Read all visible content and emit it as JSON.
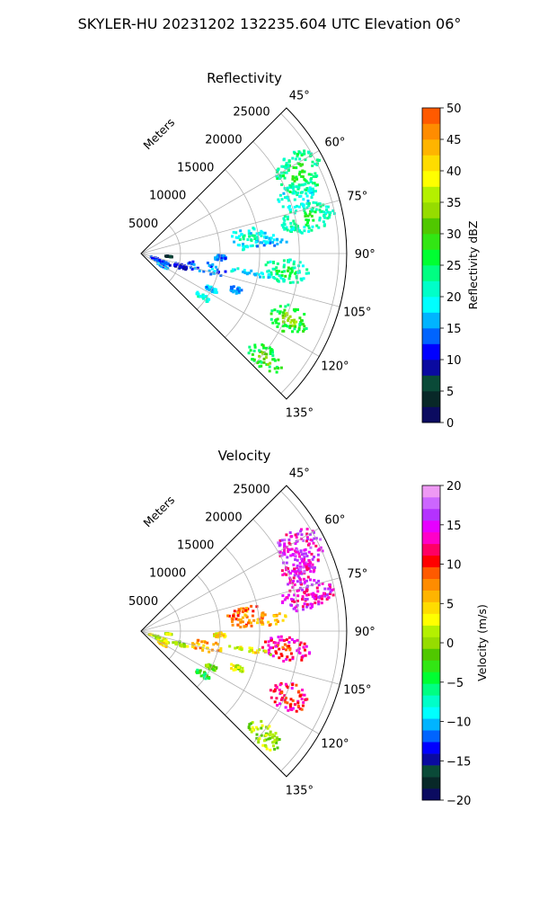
{
  "suptitle": "SKYLER-HU  20231202  132235.604 UTC Elevation 06°",
  "chart_data": [
    {
      "type": "heatmap",
      "projection": "polar-sector",
      "title": "Reflectivity",
      "radial_label": "Meters",
      "azimuth_range_deg": [
        45,
        135
      ],
      "range_max_m": 26000,
      "r_ticks": [
        5000,
        10000,
        15000,
        20000,
        25000
      ],
      "r_tick_labels": [
        "5000",
        "10000",
        "15000",
        "20000",
        "25000"
      ],
      "azimuth_ticks": [
        45,
        60,
        75,
        90,
        105,
        120,
        135
      ],
      "azimuth_tick_labels": [
        "45°",
        "60°",
        "75°",
        "90°",
        "105°",
        "120°",
        "135°"
      ],
      "grid": true,
      "colorbar": {
        "label": "Reflectivity dBZ",
        "range": [
          0,
          50
        ],
        "ticks": [
          0,
          5,
          10,
          15,
          20,
          25,
          30,
          35,
          40,
          45,
          50
        ],
        "tick_labels": [
          "0",
          "5",
          "10",
          "15",
          "20",
          "25",
          "30",
          "35",
          "40",
          "45",
          "50"
        ],
        "step": 2.5,
        "colors": [
          "#0b0b60",
          "#082828",
          "#0a4a38",
          "#0a0aa0",
          "#0000ff",
          "#0064ff",
          "#00b4ff",
          "#00ffff",
          "#00ffc8",
          "#00ff82",
          "#00ff32",
          "#32e614",
          "#50c800",
          "#96dc00",
          "#b4f000",
          "#ffff00",
          "#ffdc00",
          "#ffb400",
          "#ff8c00",
          "#ff5a00",
          "#ff0000",
          "#ff0064",
          "#ff00c8",
          "#e600ff",
          "#b432ff",
          "#cc66ff",
          "#ee99f4",
          "#ffd8ff"
        ]
      },
      "echoes": [
        {
          "az": 63,
          "r": 22500,
          "dr": 3000,
          "daz": 7,
          "value": 23,
          "core": 28
        },
        {
          "az": 70,
          "r": 21000,
          "dr": 2500,
          "daz": 4,
          "value": 20
        },
        {
          "az": 78,
          "r": 21500,
          "dr": 3500,
          "daz": 5,
          "value": 22,
          "core": 26
        },
        {
          "az": 82,
          "r": 13500,
          "dr": 2500,
          "daz": 6,
          "value": 19,
          "core": 24
        },
        {
          "az": 85,
          "r": 16500,
          "dr": 2000,
          "daz": 3,
          "value": 17
        },
        {
          "az": 97,
          "r": 18500,
          "dr": 3000,
          "daz": 5,
          "value": 22,
          "core": 26
        },
        {
          "az": 103,
          "r": 8500,
          "dr": 2500,
          "daz": 5,
          "value": 14,
          "core": 19
        },
        {
          "az": 108,
          "r": 5200,
          "dr": 1000,
          "daz": 3,
          "value": 10
        },
        {
          "az": 114,
          "r": 20500,
          "dr": 2500,
          "daz": 5,
          "value": 27,
          "core": 34
        },
        {
          "az": 111,
          "r": 13000,
          "dr": 900,
          "daz": 2,
          "value": 16
        },
        {
          "az": 117,
          "r": 10000,
          "dr": 800,
          "daz": 2,
          "value": 17
        },
        {
          "az": 125,
          "r": 9500,
          "dr": 1000,
          "daz": 2,
          "value": 20
        },
        {
          "az": 130,
          "r": 20500,
          "dr": 2500,
          "daz": 4,
          "value": 26,
          "core": 33
        },
        {
          "az": 100,
          "r": 14000,
          "dr": 3000,
          "daz": 1.5,
          "value": 18
        },
        {
          "az": 93,
          "r": 10000,
          "dr": 800,
          "daz": 2,
          "value": 14
        },
        {
          "az": 112,
          "r": 2500,
          "dr": 1500,
          "daz": 5,
          "value": 12
        },
        {
          "az": 120,
          "r": 3200,
          "dr": 800,
          "daz": 3,
          "value": 15
        },
        {
          "az": 96,
          "r": 3500,
          "dr": 500,
          "daz": 1,
          "value": 5
        }
      ]
    },
    {
      "type": "heatmap",
      "projection": "polar-sector",
      "title": "Velocity",
      "radial_label": "Meters",
      "azimuth_range_deg": [
        45,
        135
      ],
      "range_max_m": 26000,
      "r_ticks": [
        5000,
        10000,
        15000,
        20000,
        25000
      ],
      "r_tick_labels": [
        "5000",
        "10000",
        "15000",
        "20000",
        "25000"
      ],
      "azimuth_ticks": [
        45,
        60,
        75,
        90,
        105,
        120,
        135
      ],
      "azimuth_tick_labels": [
        "45°",
        "60°",
        "75°",
        "90°",
        "105°",
        "120°",
        "135°"
      ],
      "grid": true,
      "colorbar": {
        "label": "Velocity (m/s)",
        "range": [
          -20,
          20
        ],
        "ticks": [
          -20,
          -15,
          -10,
          -5,
          0,
          5,
          10,
          15,
          20
        ],
        "tick_labels": [
          "−20",
          "−15",
          "−10",
          "−5",
          "0",
          "5",
          "10",
          "15",
          "20"
        ],
        "step": 1.5,
        "colors": [
          "#0b0b60",
          "#082828",
          "#0a4a38",
          "#0a0aa0",
          "#0000ff",
          "#0064ff",
          "#00b4ff",
          "#00ffff",
          "#00ffc8",
          "#00ff82",
          "#00ff32",
          "#32e614",
          "#50c800",
          "#96dc00",
          "#b4f000",
          "#ffff00",
          "#ffdc00",
          "#ffb400",
          "#ff8c00",
          "#ff5a00",
          "#ff0000",
          "#ff0064",
          "#ff00c8",
          "#e600ff",
          "#b432ff",
          "#cc66ff",
          "#ee99f4",
          "#ffd8ff"
        ]
      },
      "echoes": [
        {
          "az": 63,
          "r": 22500,
          "dr": 3000,
          "daz": 7,
          "value": 15
        },
        {
          "az": 70,
          "r": 21000,
          "dr": 2500,
          "daz": 4,
          "value": 15
        },
        {
          "az": 78,
          "r": 21500,
          "dr": 3500,
          "daz": 5,
          "value": 14.5
        },
        {
          "az": 82,
          "r": 13500,
          "dr": 2500,
          "daz": 6,
          "value": 9,
          "core": 7
        },
        {
          "az": 85,
          "r": 16500,
          "dr": 2000,
          "daz": 3,
          "value": 7
        },
        {
          "az": 97,
          "r": 18500,
          "dr": 3000,
          "daz": 5,
          "value": 13,
          "core": 10
        },
        {
          "az": 103,
          "r": 8500,
          "dr": 2500,
          "daz": 5,
          "value": 7,
          "core": 4
        },
        {
          "az": 108,
          "r": 5200,
          "dr": 1000,
          "daz": 3,
          "value": 2
        },
        {
          "az": 114,
          "r": 20500,
          "dr": 2500,
          "daz": 5,
          "value": 12,
          "core": 10
        },
        {
          "az": 111,
          "r": 13000,
          "dr": 900,
          "daz": 2,
          "value": 2
        },
        {
          "az": 117,
          "r": 10000,
          "dr": 800,
          "daz": 2,
          "value": 0
        },
        {
          "az": 125,
          "r": 9500,
          "dr": 1000,
          "daz": 2,
          "value": -4
        },
        {
          "az": 130,
          "r": 20500,
          "dr": 2500,
          "daz": 4,
          "value": 1
        },
        {
          "az": 100,
          "r": 14000,
          "dr": 3000,
          "daz": 1.5,
          "value": 3
        },
        {
          "az": 93,
          "r": 10000,
          "dr": 800,
          "daz": 2,
          "value": 5
        },
        {
          "az": 112,
          "r": 2500,
          "dr": 1500,
          "daz": 5,
          "value": 2
        },
        {
          "az": 120,
          "r": 3200,
          "dr": 800,
          "daz": 3,
          "value": 4
        },
        {
          "az": 96,
          "r": 3500,
          "dr": 500,
          "daz": 1,
          "value": 2
        }
      ]
    }
  ]
}
